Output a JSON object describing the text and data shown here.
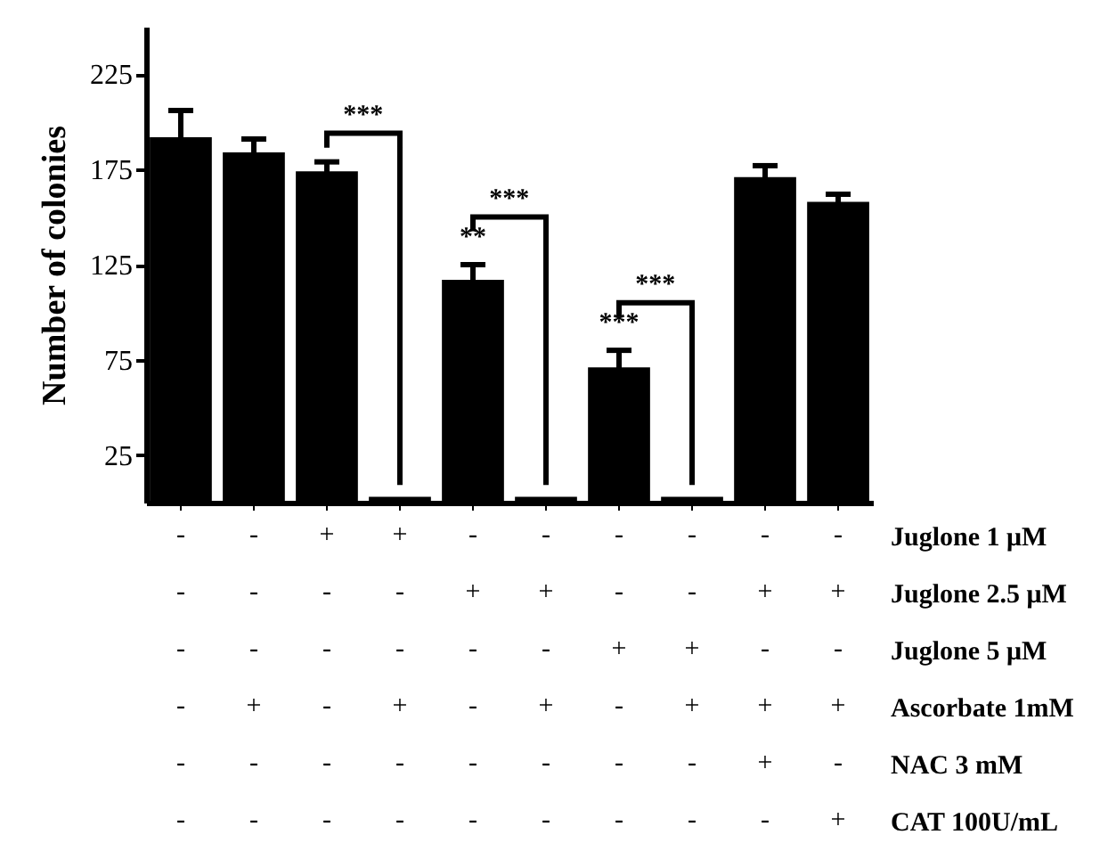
{
  "chart_data": {
    "type": "bar",
    "ylabel": "Number of colonies",
    "categories": [
      "-\n-\n-\n-\n-\n-",
      "-\n-\n-\n+\n-\n-",
      "+\n-\n-\n-\n-\n-",
      "+\n-\n-\n+\n-\n-",
      "-\n+\n-\n-\n-\n-",
      "-\n+\n-\n+\n-\n-",
      "-\n-\n+\n-\n-\n-",
      "-\n-\n+\n+\n-\n-",
      "-\n+\n-\n+\n+\n-",
      "-\n+\n-\n+\n-\n+"
    ],
    "values": [
      192,
      184,
      174,
      3,
      117,
      3,
      71,
      3,
      171,
      158
    ],
    "errors": [
      14,
      7,
      5,
      null,
      8,
      null,
      9,
      null,
      6,
      4
    ],
    "value_labels": [
      null,
      null,
      null,
      null,
      "**",
      null,
      "***",
      null,
      null,
      null
    ],
    "color": "#000000",
    "ylim": [
      0,
      250
    ],
    "yticks": [
      25,
      75,
      125,
      175,
      225
    ],
    "grid": false,
    "annotations": [
      "Juglone 1 μM",
      "Juglone 2.5 μM",
      "Juglone 5 μM",
      "Ascorbate 1mM",
      "NAC 3 mM",
      "CAT 100U/mL",
      "***",
      "***",
      "***"
    ]
  }
}
